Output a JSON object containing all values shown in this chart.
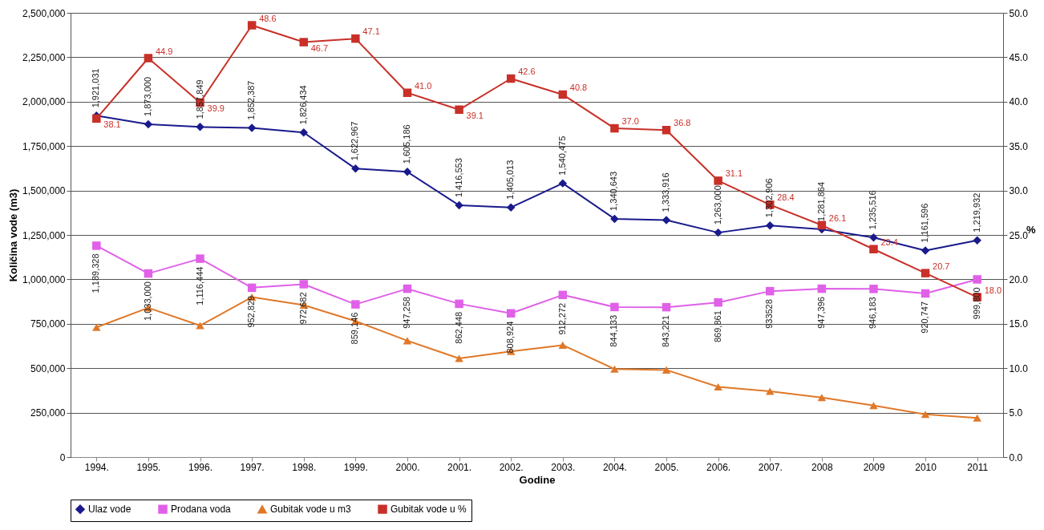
{
  "chart_data": {
    "type": "line",
    "xlabel": "Godine",
    "ylabel": "Količina vode (m3)",
    "y2label": "%",
    "categories": [
      "1994.",
      "1995.",
      "1996.",
      "1997.",
      "1998.",
      "1999.",
      "2000.",
      "2001.",
      "2002.",
      "2003.",
      "2004.",
      "2005.",
      "2006.",
      "2007.",
      "2008",
      "2009",
      "2010",
      "2011"
    ],
    "ylim": [
      0,
      2500000
    ],
    "yticks": [
      0,
      {
        "value": 250000,
        "label": "250,000"
      },
      {
        "value": 500000,
        "label": "500,000"
      },
      {
        "value": 750000,
        "label": "750,000"
      },
      {
        "value": 1000000,
        "label": "1,000,000"
      },
      {
        "value": 1250000,
        "label": "1,250,000"
      },
      {
        "value": 1500000,
        "label": "1,500,000"
      },
      {
        "value": 1750000,
        "label": "1,750,000"
      },
      {
        "value": 2000000,
        "label": "2,000,000"
      },
      {
        "value": 2250000,
        "label": "2,250,000"
      },
      {
        "value": 2500000,
        "label": "2,500,000"
      }
    ],
    "y2lim": [
      0,
      50
    ],
    "y2ticks": [
      {
        "value": 0,
        "label": "0.0"
      },
      {
        "value": 5,
        "label": "5.0"
      },
      {
        "value": 10,
        "label": "10.0"
      },
      {
        "value": 15,
        "label": "15.0"
      },
      {
        "value": 20,
        "label": "20.0"
      },
      {
        "value": 25,
        "label": "25.0"
      },
      {
        "value": 30,
        "label": "30.0"
      },
      {
        "value": 35,
        "label": "35.0"
      },
      {
        "value": 40,
        "label": "40.0"
      },
      {
        "value": 45,
        "label": "45.0"
      },
      {
        "value": 50,
        "label": "50.0"
      }
    ],
    "grid": "y",
    "legend": "bottom",
    "line_style": "solid",
    "series": [
      {
        "name": "Ulaz vode",
        "color": "#1a1a8c",
        "marker": "diamond",
        "values": [
          1921031,
          1873000,
          1857849,
          1852387,
          1826434,
          1622967,
          1605186,
          1416553,
          1405013,
          1540475,
          1340643,
          1333916,
          1263000,
          1302906,
          1281864,
          1235516,
          1161596,
          1219932
        ],
        "value_labels": [
          "1,921,031",
          "1,873,000",
          "1,857,849",
          "1,852,387",
          "1,826,434",
          "1,622,967",
          "1,605,186",
          "1,416,553",
          "1,405,013",
          "1,540,475",
          "1,340,643",
          "1,333,916",
          "1,263,000",
          "1,302,906",
          "1,281,864",
          "1,235,516",
          "1,161,596",
          "1,219,932"
        ]
      },
      {
        "name": "Prodana voda",
        "color": "#e060e8",
        "marker": "square",
        "values": [
          1189328,
          1033000,
          1116444,
          952829,
          972682,
          859146,
          947258,
          862448,
          808924,
          912272,
          844133,
          843221,
          869861,
          933528,
          947396,
          946183,
          920747,
          999800
        ],
        "value_labels": [
          "1,189,328",
          "1,033,000",
          "1,116,444",
          "952,829",
          "972,682",
          "859,146",
          "947,258",
          "862,448",
          "808,924",
          "912,272",
          "844,133",
          "843,221",
          "869,861",
          "933528",
          "947,396",
          "946,183",
          "920,747",
          "999,800"
        ]
      },
      {
        "name": "Gubitak vode u m3",
        "color": "#e07828",
        "marker": "triangle",
        "values": [
          730000,
          840000,
          740000,
          900000,
          855000,
          765000,
          655000,
          555000,
          595000,
          630000,
          495000,
          490000,
          395000,
          370000,
          335000,
          290000,
          240000,
          220000
        ]
      },
      {
        "name": "Gubitak vode u %",
        "color": "#c83028",
        "marker": "square",
        "axis": "y2",
        "values": [
          38.1,
          44.9,
          39.9,
          48.6,
          46.7,
          47.1,
          41.0,
          39.1,
          42.6,
          40.8,
          37.0,
          36.8,
          31.1,
          28.4,
          26.1,
          23.4,
          20.7,
          18.0
        ],
        "value_labels": [
          "38.1",
          "44.9",
          "39.9",
          "48.6",
          "46.7",
          "47.1",
          "41.0",
          "39.1",
          "42.6",
          "40.8",
          "37.0",
          "36.8",
          "31.1",
          "28.4",
          "26.1",
          "23.4",
          "20.7",
          "18.0"
        ]
      }
    ]
  }
}
